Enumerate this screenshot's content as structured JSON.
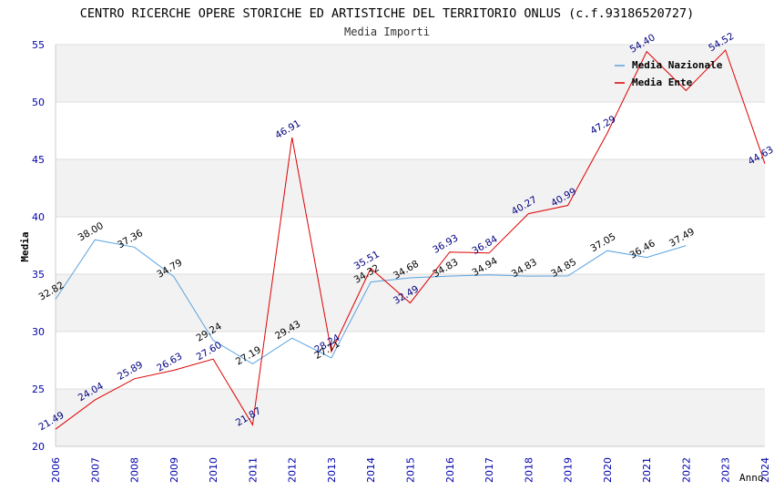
{
  "chart_data": {
    "type": "line",
    "title": "CENTRO RICERCHE OPERE STORICHE ED ARTISTICHE DEL TERRITORIO ONLUS (c.f.93186520727)",
    "subtitle": "Media Importi",
    "ylabel": "Media",
    "xlabel": "Anno",
    "ylim": [
      20,
      55
    ],
    "yticks": [
      "20",
      "25",
      "30",
      "35",
      "40",
      "45",
      "50",
      "55"
    ],
    "x": [
      "2006",
      "2007",
      "2008",
      "2009",
      "2010",
      "2011",
      "2012",
      "2013",
      "2014",
      "2015",
      "2016",
      "2017",
      "2018",
      "2019",
      "2020",
      "2021",
      "2022",
      "2023",
      "2024"
    ],
    "series": [
      {
        "name": "Media Nazionale",
        "color": "#5ba3e0",
        "label_color": "#000000",
        "values": [
          32.82,
          38.0,
          37.36,
          34.79,
          29.24,
          27.19,
          29.43,
          27.71,
          34.32,
          34.68,
          34.83,
          34.94,
          34.83,
          34.85,
          37.05,
          36.46,
          37.49,
          null,
          null
        ],
        "labels": [
          "32.82",
          "38.00",
          "37.36",
          "34.79",
          "29.24",
          "27.19",
          "29.43",
          "27.71",
          "34.32",
          "34.68",
          "34.83",
          "34.94",
          "34.83",
          "34.85",
          "37.05",
          "36.46",
          "37.49",
          "",
          ""
        ]
      },
      {
        "name": "Media Ente",
        "color": "#dd0000",
        "label_color": "#000080",
        "values": [
          21.49,
          24.04,
          25.89,
          26.63,
          27.6,
          21.87,
          46.91,
          28.24,
          35.51,
          32.49,
          36.93,
          36.84,
          40.27,
          40.99,
          47.29,
          54.4,
          51.0,
          54.52,
          44.63
        ],
        "labels": [
          "21.49",
          "24.04",
          "25.89",
          "26.63",
          "27.60",
          "21.87",
          "46.91",
          "28.24",
          "35.51",
          "32.49",
          "36.93",
          "36.84",
          "40.27",
          "40.99",
          "47.29",
          "54.40",
          "",
          "54.52",
          "44.63"
        ]
      }
    ],
    "legend": "top-right"
  }
}
